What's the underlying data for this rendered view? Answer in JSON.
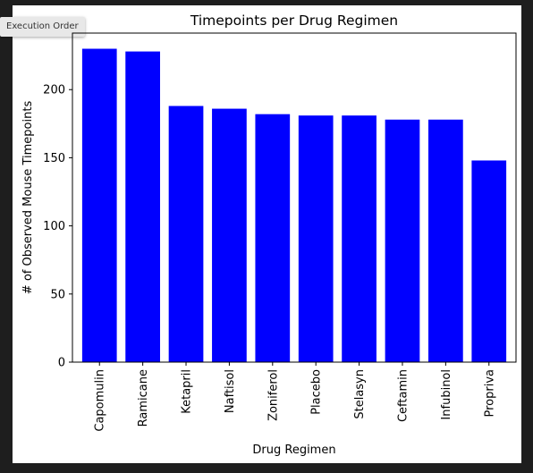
{
  "tooltip": {
    "label": "Execution Order"
  },
  "colors": {
    "bar": "#0000ff",
    "axes": "#000000",
    "background": "#ffffff"
  },
  "chart_data": {
    "type": "bar",
    "title": "Timepoints per Drug Regimen",
    "xlabel": "Drug Regimen",
    "ylabel": "# of Observed Mouse Timepoints",
    "categories": [
      "Capomulin",
      "Ramicane",
      "Ketapril",
      "Naftisol",
      "Zoniferol",
      "Placebo",
      "Stelasyn",
      "Ceftamin",
      "Infubinol",
      "Propriva"
    ],
    "values": [
      230,
      228,
      188,
      186,
      182,
      181,
      181,
      178,
      178,
      148
    ],
    "ylim": [
      0,
      241.5
    ],
    "yticks": [
      0,
      50,
      100,
      150,
      200
    ],
    "grid": false,
    "legend": "none"
  }
}
